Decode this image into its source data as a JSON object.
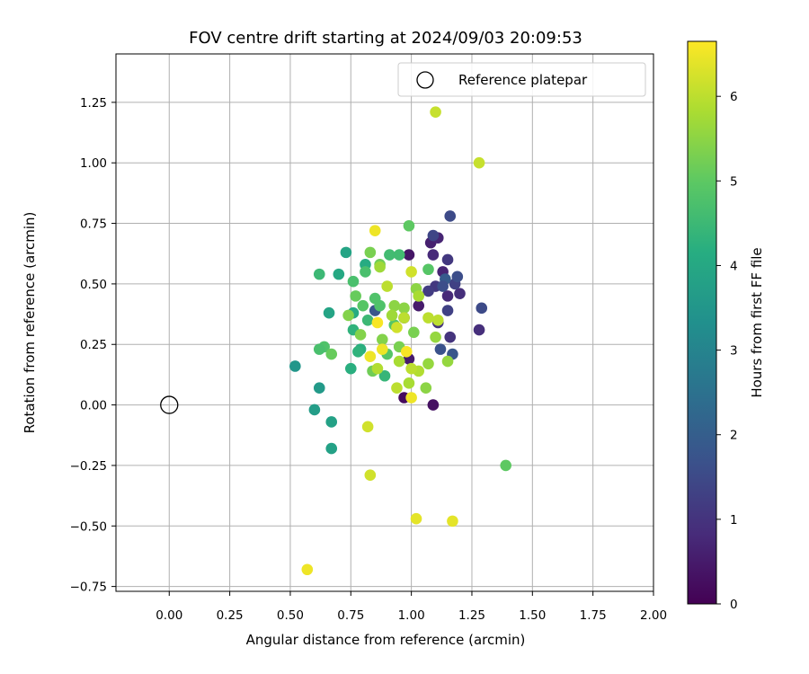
{
  "chart_data": {
    "type": "scatter",
    "title": "FOV centre drift starting at 2024/09/03 20:09:53",
    "xlabel": "Angular distance from reference (arcmin)",
    "ylabel": "Rotation from reference (arcmin)",
    "xlim": [
      -0.22,
      2.0
    ],
    "ylim": [
      -0.77,
      1.45
    ],
    "xticks": [
      "0.00",
      "0.25",
      "0.50",
      "0.75",
      "1.00",
      "1.25",
      "1.50",
      "1.75",
      "2.00"
    ],
    "xtick_values": [
      0,
      0.25,
      0.5,
      0.75,
      1.0,
      1.25,
      1.5,
      1.75,
      2.0
    ],
    "yticks": [
      "−0.75",
      "−0.50",
      "−0.25",
      "0.00",
      "0.25",
      "0.50",
      "0.75",
      "1.00",
      "1.25"
    ],
    "ytick_values": [
      -0.75,
      -0.5,
      -0.25,
      0,
      0.25,
      0.5,
      0.75,
      1.0,
      1.25
    ],
    "grid": true,
    "legend": {
      "placement": "upper-right",
      "entries": [
        "Reference platepar"
      ]
    },
    "reference_point": {
      "x": 0.0,
      "y": 0.0,
      "marker": "open-circle"
    },
    "colorbar": {
      "label": "Hours from first FF file",
      "colormap": "viridis",
      "range": [
        0,
        6.65
      ],
      "ticks": [
        "0",
        "1",
        "2",
        "3",
        "4",
        "5",
        "6"
      ],
      "tick_values": [
        0,
        1,
        2,
        3,
        4,
        5,
        6
      ]
    },
    "points": [
      {
        "x": 0.97,
        "y": 0.03,
        "h": 0.2
      },
      {
        "x": 1.09,
        "y": 0.0,
        "h": 0.3
      },
      {
        "x": 0.99,
        "y": 0.62,
        "h": 0.4
      },
      {
        "x": 1.03,
        "y": 0.41,
        "h": 0.5
      },
      {
        "x": 1.08,
        "y": 0.67,
        "h": 0.6
      },
      {
        "x": 1.11,
        "y": 0.69,
        "h": 0.7
      },
      {
        "x": 1.13,
        "y": 0.55,
        "h": 0.7
      },
      {
        "x": 1.09,
        "y": 0.62,
        "h": 0.8
      },
      {
        "x": 1.15,
        "y": 0.45,
        "h": 0.8
      },
      {
        "x": 1.2,
        "y": 0.46,
        "h": 0.9
      },
      {
        "x": 0.97,
        "y": 0.36,
        "h": 0.9
      },
      {
        "x": 1.11,
        "y": 0.34,
        "h": 1.0
      },
      {
        "x": 0.99,
        "y": 0.19,
        "h": 0.5
      },
      {
        "x": 1.15,
        "y": 0.6,
        "h": 1.1
      },
      {
        "x": 1.1,
        "y": 0.49,
        "h": 1.1
      },
      {
        "x": 1.28,
        "y": 0.31,
        "h": 0.9
      },
      {
        "x": 1.16,
        "y": 0.28,
        "h": 1.0
      },
      {
        "x": 1.07,
        "y": 0.47,
        "h": 1.2
      },
      {
        "x": 1.18,
        "y": 0.5,
        "h": 1.3
      },
      {
        "x": 1.15,
        "y": 0.39,
        "h": 1.3
      },
      {
        "x": 1.09,
        "y": 0.7,
        "h": 1.4
      },
      {
        "x": 1.16,
        "y": 0.78,
        "h": 1.5
      },
      {
        "x": 1.29,
        "y": 0.4,
        "h": 1.5
      },
      {
        "x": 1.19,
        "y": 0.53,
        "h": 1.6
      },
      {
        "x": 1.12,
        "y": 0.23,
        "h": 1.7
      },
      {
        "x": 1.17,
        "y": 0.21,
        "h": 1.8
      },
      {
        "x": 0.85,
        "y": 0.39,
        "h": 1.8
      },
      {
        "x": 1.14,
        "y": 0.52,
        "h": 1.9
      },
      {
        "x": 1.13,
        "y": 0.49,
        "h": 1.6
      },
      {
        "x": 0.52,
        "y": 0.16,
        "h": 3.5
      },
      {
        "x": 0.62,
        "y": 0.07,
        "h": 3.6
      },
      {
        "x": 0.6,
        "y": -0.02,
        "h": 3.7
      },
      {
        "x": 0.67,
        "y": -0.07,
        "h": 3.8
      },
      {
        "x": 0.67,
        "y": -0.18,
        "h": 3.8
      },
      {
        "x": 0.66,
        "y": 0.38,
        "h": 3.9
      },
      {
        "x": 0.73,
        "y": 0.63,
        "h": 3.9
      },
      {
        "x": 0.7,
        "y": 0.54,
        "h": 4.0
      },
      {
        "x": 0.76,
        "y": 0.38,
        "h": 4.1
      },
      {
        "x": 0.81,
        "y": 0.58,
        "h": 4.1
      },
      {
        "x": 0.75,
        "y": 0.15,
        "h": 4.2
      },
      {
        "x": 0.79,
        "y": 0.23,
        "h": 4.2
      },
      {
        "x": 0.78,
        "y": 0.22,
        "h": 4.3
      },
      {
        "x": 0.76,
        "y": 0.31,
        "h": 4.3
      },
      {
        "x": 0.89,
        "y": 0.12,
        "h": 4.4
      },
      {
        "x": 0.62,
        "y": 0.54,
        "h": 4.5
      },
      {
        "x": 0.82,
        "y": 0.35,
        "h": 4.5
      },
      {
        "x": 0.91,
        "y": 0.62,
        "h": 4.6
      },
      {
        "x": 0.95,
        "y": 0.62,
        "h": 4.6
      },
      {
        "x": 0.81,
        "y": 0.55,
        "h": 4.7
      },
      {
        "x": 0.76,
        "y": 0.51,
        "h": 4.7
      },
      {
        "x": 0.87,
        "y": 0.41,
        "h": 4.8
      },
      {
        "x": 0.85,
        "y": 0.44,
        "h": 4.8
      },
      {
        "x": 0.8,
        "y": 0.41,
        "h": 4.9
      },
      {
        "x": 0.9,
        "y": 0.21,
        "h": 4.9
      },
      {
        "x": 0.93,
        "y": 0.33,
        "h": 4.9
      },
      {
        "x": 0.64,
        "y": 0.24,
        "h": 4.8
      },
      {
        "x": 0.62,
        "y": 0.23,
        "h": 4.7
      },
      {
        "x": 1.07,
        "y": 0.56,
        "h": 4.9
      },
      {
        "x": 0.99,
        "y": 0.74,
        "h": 5.0
      },
      {
        "x": 1.39,
        "y": -0.25,
        "h": 5.0
      },
      {
        "x": 0.67,
        "y": 0.21,
        "h": 5.1
      },
      {
        "x": 0.77,
        "y": 0.45,
        "h": 5.1
      },
      {
        "x": 0.84,
        "y": 0.14,
        "h": 5.2
      },
      {
        "x": 0.87,
        "y": 0.58,
        "h": 5.2
      },
      {
        "x": 0.83,
        "y": 0.63,
        "h": 5.3
      },
      {
        "x": 0.95,
        "y": 0.24,
        "h": 5.3
      },
      {
        "x": 1.01,
        "y": 0.3,
        "h": 5.3
      },
      {
        "x": 0.74,
        "y": 0.37,
        "h": 5.4
      },
      {
        "x": 0.79,
        "y": 0.29,
        "h": 5.4
      },
      {
        "x": 0.88,
        "y": 0.27,
        "h": 5.4
      },
      {
        "x": 0.93,
        "y": 0.41,
        "h": 5.5
      },
      {
        "x": 0.97,
        "y": 0.4,
        "h": 5.5
      },
      {
        "x": 1.02,
        "y": 0.48,
        "h": 5.5
      },
      {
        "x": 1.06,
        "y": 0.07,
        "h": 5.5
      },
      {
        "x": 1.07,
        "y": 0.17,
        "h": 5.6
      },
      {
        "x": 1.1,
        "y": 0.28,
        "h": 5.6
      },
      {
        "x": 1.15,
        "y": 0.18,
        "h": 5.6
      },
      {
        "x": 0.87,
        "y": 0.57,
        "h": 5.7
      },
      {
        "x": 0.92,
        "y": 0.37,
        "h": 5.7
      },
      {
        "x": 0.95,
        "y": 0.18,
        "h": 5.8
      },
      {
        "x": 0.99,
        "y": 0.09,
        "h": 5.8
      },
      {
        "x": 1.03,
        "y": 0.45,
        "h": 5.8
      },
      {
        "x": 1.03,
        "y": 0.14,
        "h": 5.9
      },
      {
        "x": 0.86,
        "y": 0.15,
        "h": 5.9
      },
      {
        "x": 0.9,
        "y": 0.49,
        "h": 6.0
      },
      {
        "x": 0.94,
        "y": 0.07,
        "h": 6.0
      },
      {
        "x": 0.97,
        "y": 0.36,
        "h": 6.0
      },
      {
        "x": 1.0,
        "y": 0.15,
        "h": 6.0
      },
      {
        "x": 1.07,
        "y": 0.36,
        "h": 6.0
      },
      {
        "x": 1.11,
        "y": 0.35,
        "h": 6.0
      },
      {
        "x": 1.28,
        "y": 1.0,
        "h": 6.1
      },
      {
        "x": 1.1,
        "y": 1.21,
        "h": 6.1
      },
      {
        "x": 0.82,
        "y": -0.09,
        "h": 6.2
      },
      {
        "x": 0.83,
        "y": -0.29,
        "h": 6.2
      },
      {
        "x": 1.0,
        "y": 0.55,
        "h": 6.2
      },
      {
        "x": 0.94,
        "y": 0.32,
        "h": 6.2
      },
      {
        "x": 1.02,
        "y": -0.47,
        "h": 6.4
      },
      {
        "x": 1.17,
        "y": -0.48,
        "h": 6.4
      },
      {
        "x": 0.57,
        "y": -0.68,
        "h": 6.5
      },
      {
        "x": 0.85,
        "y": 0.72,
        "h": 6.5
      },
      {
        "x": 0.83,
        "y": 0.2,
        "h": 6.5
      },
      {
        "x": 0.88,
        "y": 0.23,
        "h": 6.5
      },
      {
        "x": 1.0,
        "y": 0.03,
        "h": 6.5
      },
      {
        "x": 0.98,
        "y": 0.22,
        "h": 6.6
      },
      {
        "x": 0.86,
        "y": 0.34,
        "h": 6.6
      }
    ]
  }
}
